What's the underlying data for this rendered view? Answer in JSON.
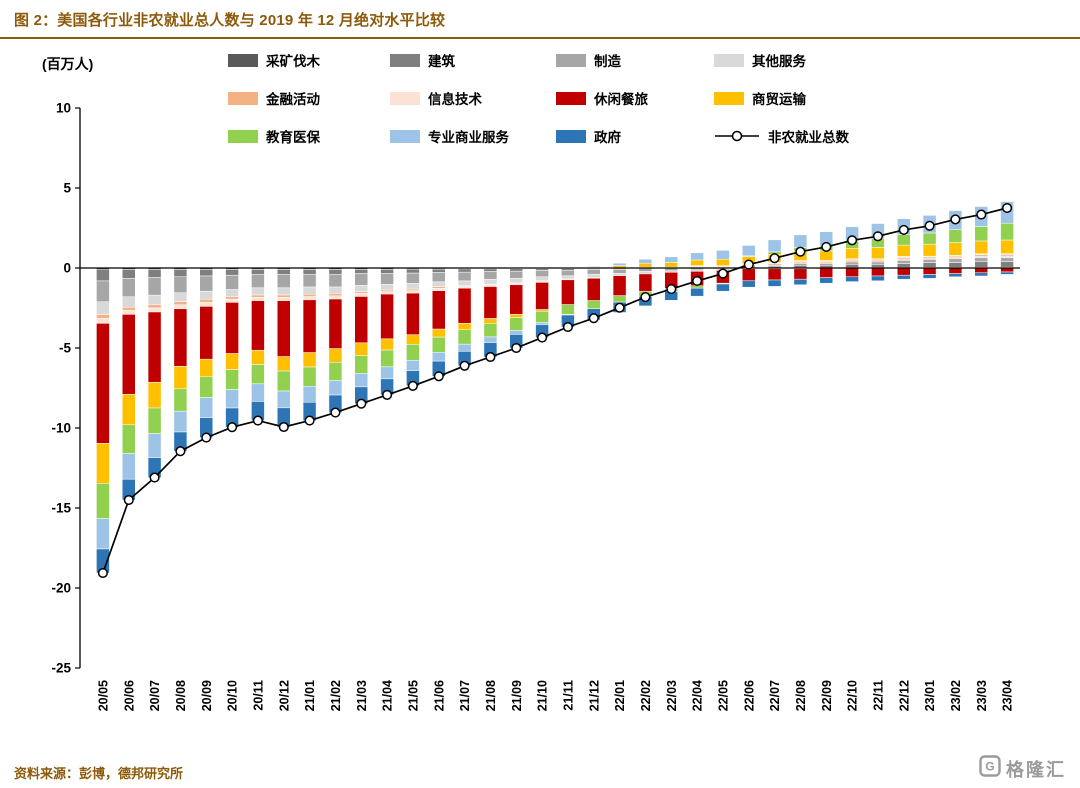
{
  "header": {
    "title": "图 2：美国各行业非农就业总人数与 2019 年 12 月绝对水平比较"
  },
  "footer": {
    "source": "资料来源：彭博，德邦研究所",
    "brand": "格隆汇"
  },
  "colors": {
    "accent": "#8C5A0A",
    "line": "#000000"
  },
  "chart_data": {
    "type": "bar",
    "subtype": "stacked-bar-with-line",
    "title": "美国各行业非农就业总人数与 2019 年 12 月绝对水平比较",
    "ylabel": "(百万人)",
    "ylim": [
      -25,
      10
    ],
    "yticks": [
      10,
      5,
      0,
      -5,
      -10,
      -15,
      -20,
      -25
    ],
    "grid": false,
    "legend_position": "top",
    "categories": [
      "20/05",
      "20/06",
      "20/07",
      "20/08",
      "20/09",
      "20/10",
      "20/11",
      "20/12",
      "21/01",
      "21/02",
      "21/03",
      "21/04",
      "21/05",
      "21/06",
      "21/07",
      "21/08",
      "21/09",
      "21/10",
      "21/11",
      "21/12",
      "22/01",
      "22/02",
      "22/03",
      "22/04",
      "22/05",
      "22/06",
      "22/07",
      "22/08",
      "22/09",
      "22/10",
      "22/11",
      "22/12",
      "23/01",
      "23/02",
      "23/03",
      "23/04"
    ],
    "series": [
      {
        "name": "采矿伐木",
        "color": "#595959",
        "values": [
          -0.11,
          -0.1,
          -0.1,
          -0.1,
          -0.1,
          -0.1,
          -0.09,
          -0.09,
          -0.09,
          -0.09,
          -0.08,
          -0.08,
          -0.07,
          -0.07,
          -0.06,
          -0.06,
          -0.05,
          -0.05,
          -0.04,
          -0.04,
          -0.03,
          -0.02,
          -0.02,
          -0.01,
          0.0,
          0.01,
          0.01,
          0.02,
          0.02,
          0.03,
          0.03,
          0.03,
          0.04,
          0.04,
          0.04,
          0.05
        ]
      },
      {
        "name": "建筑",
        "color": "#7F7F7F",
        "values": [
          -0.7,
          -0.55,
          -0.5,
          -0.45,
          -0.4,
          -0.35,
          -0.3,
          -0.3,
          -0.3,
          -0.3,
          -0.25,
          -0.25,
          -0.25,
          -0.2,
          -0.2,
          -0.15,
          -0.15,
          -0.1,
          -0.1,
          -0.05,
          -0.05,
          0.0,
          0.0,
          0.05,
          0.05,
          0.1,
          0.1,
          0.15,
          0.15,
          0.2,
          0.2,
          0.25,
          0.3,
          0.3,
          0.35,
          0.35
        ]
      },
      {
        "name": "制造",
        "color": "#A6A6A6",
        "values": [
          -1.3,
          -1.15,
          -1.1,
          -1.0,
          -0.95,
          -0.9,
          -0.85,
          -0.85,
          -0.8,
          -0.8,
          -0.75,
          -0.7,
          -0.65,
          -0.6,
          -0.55,
          -0.5,
          -0.45,
          -0.4,
          -0.35,
          -0.3,
          -0.25,
          -0.2,
          -0.15,
          -0.1,
          -0.05,
          0.0,
          0.05,
          0.1,
          0.1,
          0.15,
          0.15,
          0.2,
          0.2,
          0.25,
          0.25,
          0.25
        ]
      },
      {
        "name": "其他服务",
        "color": "#D9D9D9",
        "values": [
          -0.8,
          -0.65,
          -0.6,
          -0.55,
          -0.5,
          -0.45,
          -0.45,
          -0.45,
          -0.45,
          -0.4,
          -0.4,
          -0.35,
          -0.35,
          -0.3,
          -0.3,
          -0.3,
          -0.25,
          -0.25,
          -0.2,
          -0.2,
          -0.15,
          -0.15,
          -0.1,
          -0.1,
          -0.1,
          -0.05,
          -0.05,
          -0.05,
          0.0,
          0.0,
          0.0,
          0.05,
          0.05,
          0.05,
          0.1,
          0.1
        ]
      },
      {
        "name": "金融活动",
        "color": "#F4B183",
        "values": [
          -0.25,
          -0.2,
          -0.2,
          -0.2,
          -0.2,
          -0.15,
          -0.15,
          -0.15,
          -0.15,
          -0.15,
          -0.1,
          -0.1,
          -0.1,
          -0.1,
          -0.05,
          -0.05,
          -0.05,
          -0.05,
          0.0,
          0.0,
          0.0,
          0.05,
          0.05,
          0.05,
          0.05,
          0.1,
          0.1,
          0.1,
          0.1,
          0.1,
          0.1,
          0.1,
          0.1,
          0.1,
          0.1,
          0.1
        ]
      },
      {
        "name": "信息技术",
        "color": "#FBE2D5",
        "values": [
          -0.3,
          -0.25,
          -0.25,
          -0.25,
          -0.25,
          -0.2,
          -0.2,
          -0.2,
          -0.2,
          -0.2,
          -0.2,
          -0.15,
          -0.15,
          -0.15,
          -0.1,
          -0.1,
          -0.1,
          -0.05,
          -0.05,
          -0.05,
          0.0,
          0.0,
          0.0,
          0.05,
          0.05,
          0.05,
          0.1,
          0.1,
          0.1,
          0.1,
          0.1,
          0.1,
          0.05,
          0.05,
          0.05,
          0.05
        ]
      },
      {
        "name": "休闲餐旅",
        "color": "#C00000",
        "values": [
          -7.5,
          -5.0,
          -4.4,
          -3.6,
          -3.3,
          -3.2,
          -3.1,
          -3.5,
          -3.3,
          -3.1,
          -2.9,
          -2.8,
          -2.6,
          -2.4,
          -2.2,
          -2.0,
          -1.85,
          -1.7,
          -1.55,
          -1.4,
          -1.25,
          -1.1,
          -1.0,
          -0.9,
          -0.8,
          -0.75,
          -0.7,
          -0.65,
          -0.6,
          -0.55,
          -0.5,
          -0.45,
          -0.4,
          -0.35,
          -0.3,
          -0.25
        ]
      },
      {
        "name": "商贸运输",
        "color": "#FFC000",
        "values": [
          -2.5,
          -1.9,
          -1.6,
          -1.4,
          -1.1,
          -1.0,
          -0.9,
          -0.9,
          -0.9,
          -0.85,
          -0.8,
          -0.7,
          -0.6,
          -0.5,
          -0.4,
          -0.3,
          -0.2,
          -0.1,
          0.0,
          0.05,
          0.15,
          0.25,
          0.3,
          0.35,
          0.4,
          0.45,
          0.5,
          0.55,
          0.6,
          0.65,
          0.7,
          0.7,
          0.75,
          0.8,
          0.8,
          0.85
        ]
      },
      {
        "name": "教育医保",
        "color": "#92D050",
        "values": [
          -2.2,
          -1.8,
          -1.6,
          -1.4,
          -1.3,
          -1.25,
          -1.2,
          -1.25,
          -1.2,
          -1.15,
          -1.1,
          -1.05,
          -1.0,
          -0.95,
          -0.9,
          -0.85,
          -0.8,
          -0.7,
          -0.6,
          -0.5,
          -0.4,
          -0.3,
          -0.2,
          -0.15,
          -0.05,
          0.05,
          0.15,
          0.25,
          0.35,
          0.45,
          0.55,
          0.65,
          0.7,
          0.8,
          0.9,
          1.05
        ]
      },
      {
        "name": "专业商业服务",
        "color": "#9DC3E6",
        "values": [
          -1.9,
          -1.6,
          -1.5,
          -1.3,
          -1.25,
          -1.15,
          -1.1,
          -1.05,
          -1.0,
          -0.9,
          -0.85,
          -0.75,
          -0.65,
          -0.55,
          -0.45,
          -0.35,
          -0.25,
          -0.15,
          -0.05,
          0.05,
          0.15,
          0.25,
          0.35,
          0.45,
          0.55,
          0.65,
          0.75,
          0.8,
          0.85,
          0.9,
          0.95,
          1.0,
          1.1,
          1.2,
          1.25,
          1.35
        ]
      },
      {
        "name": "政府",
        "color": "#2E75B6",
        "values": [
          -1.5,
          -1.3,
          -1.25,
          -1.2,
          -1.25,
          -1.2,
          -1.2,
          -1.2,
          -1.15,
          -1.1,
          -1.05,
          -1.0,
          -0.95,
          -0.95,
          -0.9,
          -0.9,
          -0.85,
          -0.8,
          -0.75,
          -0.7,
          -0.65,
          -0.6,
          -0.55,
          -0.5,
          -0.45,
          -0.4,
          -0.4,
          -0.35,
          -0.35,
          -0.3,
          -0.3,
          -0.25,
          -0.25,
          -0.2,
          -0.2,
          -0.15
        ]
      }
    ],
    "line_series": {
      "name": "非农就业总数",
      "color": "#000000",
      "marker": "circle",
      "values": [
        -19.06,
        -14.5,
        -13.1,
        -11.45,
        -10.6,
        -9.95,
        -9.54,
        -9.94,
        -9.54,
        -9.04,
        -8.48,
        -7.93,
        -7.37,
        -6.77,
        -6.11,
        -5.56,
        -5.0,
        -4.35,
        -3.69,
        -3.14,
        -2.48,
        -1.82,
        -1.32,
        -0.81,
        -0.35,
        0.21,
        0.61,
        1.02,
        1.32,
        1.73,
        1.98,
        2.38,
        2.64,
        3.04,
        3.34,
        3.75
      ]
    }
  }
}
